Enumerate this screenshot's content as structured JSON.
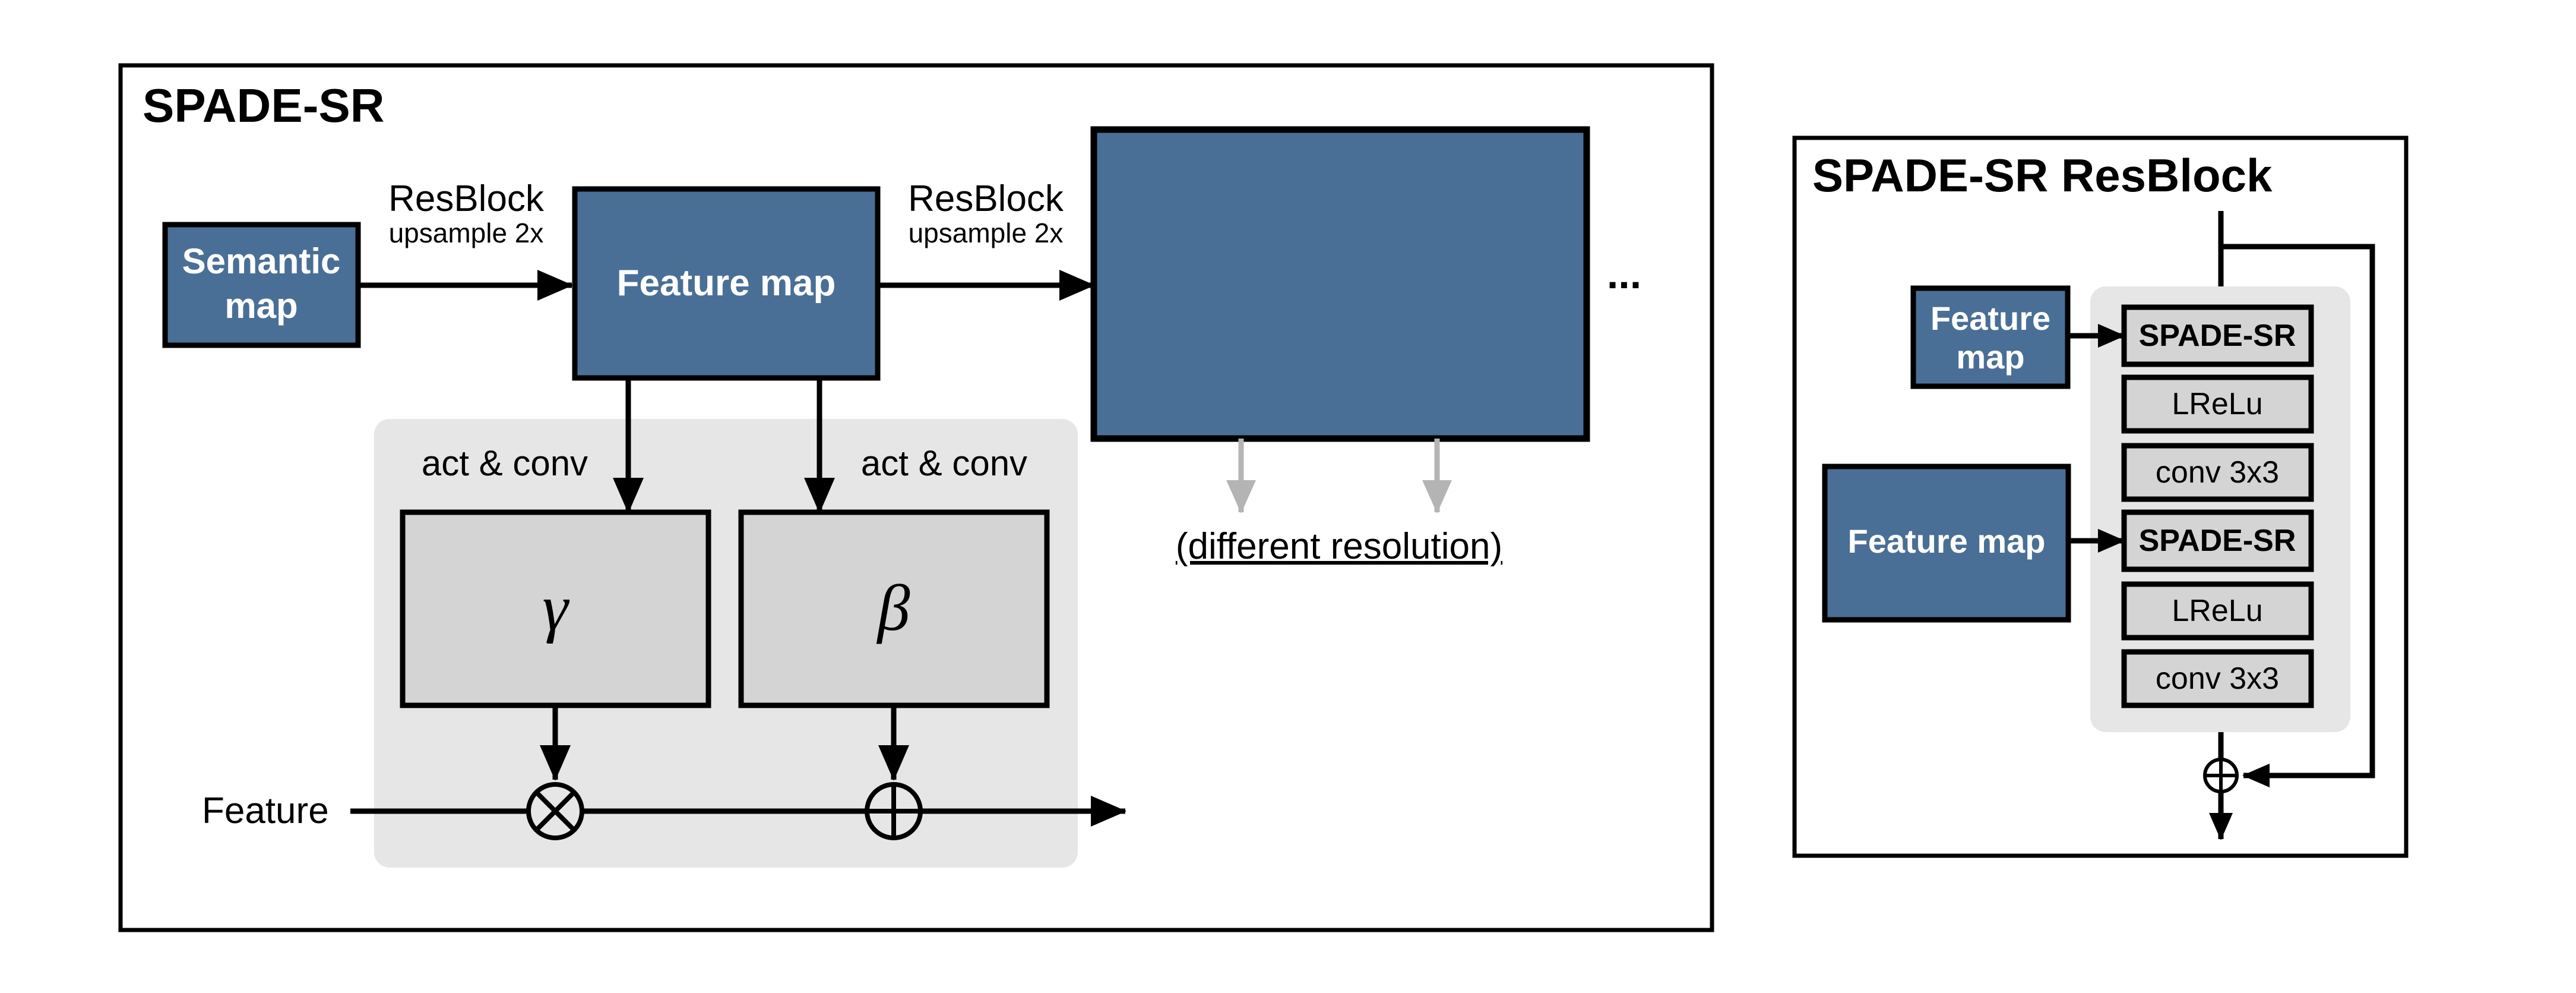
{
  "left_panel": {
    "title": "SPADE-SR",
    "semantic_map_line1": "Semantic",
    "semantic_map_line2": "map",
    "resblock1_title": "ResBlock",
    "resblock1_sub": "upsample 2x",
    "feature_map": "Feature map",
    "resblock2_title": "ResBlock",
    "resblock2_sub": "upsample 2x",
    "ellipsis": "...",
    "act_conv_left": "act & conv",
    "act_conv_right": "act & conv",
    "gamma": "γ",
    "beta": "β",
    "different_resolution": "(different resolution)",
    "feature_label": "Feature",
    "multiply_symbol": "⊗",
    "add_symbol": "⊕"
  },
  "right_panel": {
    "title": "SPADE-SR ResBlock",
    "feature_map_small_line1": "Feature",
    "feature_map_small_line2": "map",
    "feature_map_large": "Feature map",
    "stack": [
      "SPADE-SR",
      "LReLu",
      "conv 3x3",
      "SPADE-SR",
      "LReLu",
      "conv 3x3"
    ],
    "add_symbol": "⊕"
  },
  "colors": {
    "block_blue": "#4a6f96",
    "light_gray_box": "#d4d4d4",
    "panel_gray": "#e6e6e6",
    "arrow_gray": "#b4b4b4",
    "line_black": "#000000"
  }
}
